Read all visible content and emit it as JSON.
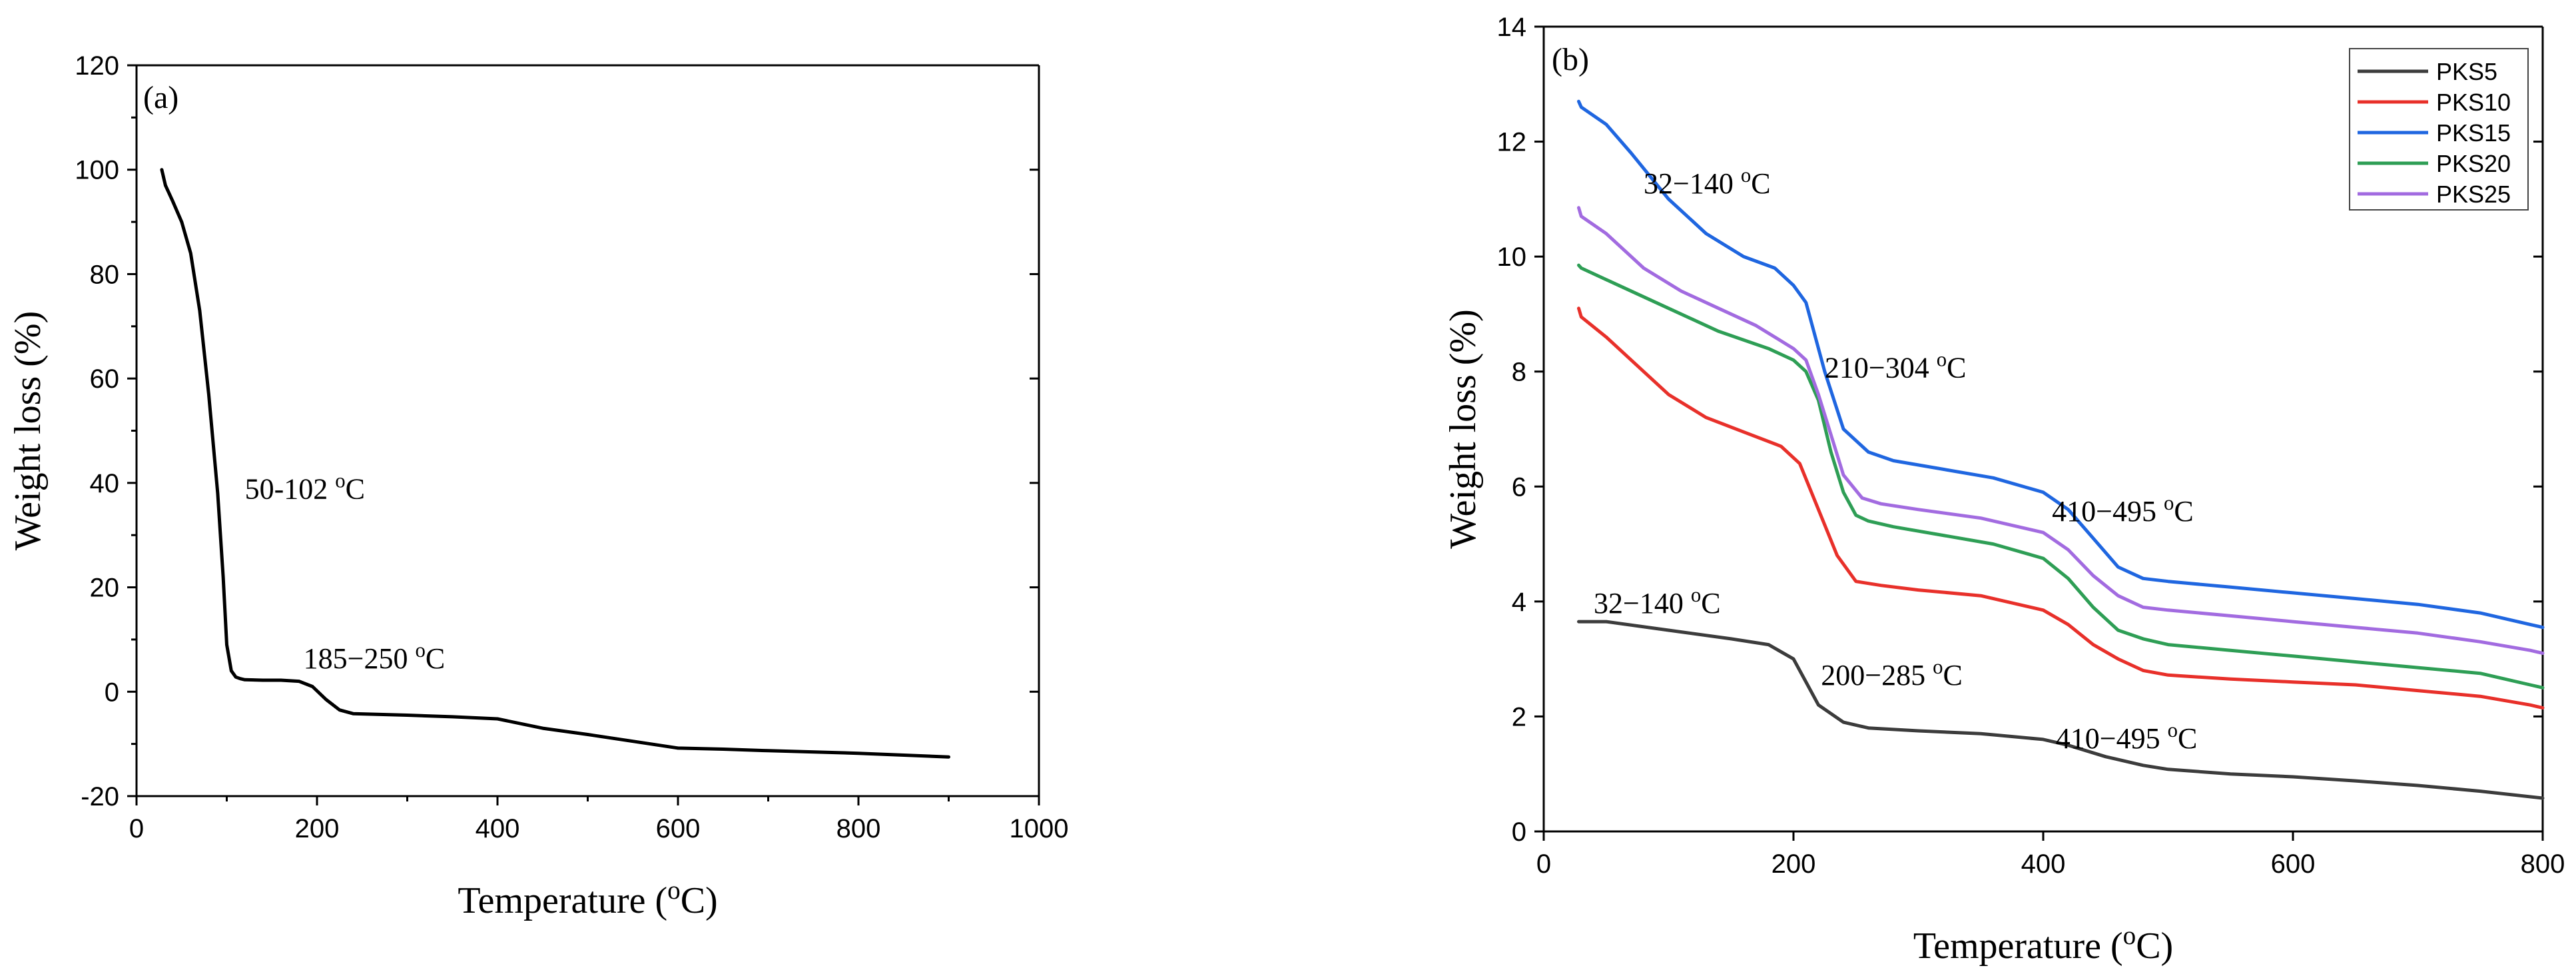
{
  "chart_data": [
    {
      "id": "a",
      "type": "line",
      "panel_label": "(a)",
      "title": "",
      "xlabel": "Temperature (°C)",
      "xlabel_main": "Temperature (",
      "xlabel_sup": "o",
      "xlabel_end": "C)",
      "ylabel": "Weight loss (%)",
      "xlim": [
        0,
        1000
      ],
      "ylim": [
        -20,
        120
      ],
      "xticks": [
        0,
        200,
        400,
        600,
        800,
        1000
      ],
      "yticks": [
        -20,
        0,
        20,
        40,
        60,
        80,
        100,
        120
      ],
      "series": [
        {
          "name": "weight loss",
          "color": "#000000",
          "x": [
            28,
            32,
            40,
            50,
            60,
            70,
            80,
            90,
            96,
            100,
            105,
            110,
            115,
            120,
            140,
            160,
            180,
            195,
            210,
            225,
            240,
            300,
            350,
            400,
            450,
            500,
            550,
            600,
            650,
            700,
            800,
            900
          ],
          "y": [
            100,
            97,
            94,
            90,
            84,
            73,
            57,
            38,
            22,
            9,
            4,
            2.8,
            2.5,
            2.3,
            2.2,
            2.2,
            2.0,
            1.0,
            -1.5,
            -3.5,
            -4.2,
            -4.5,
            -4.8,
            -5.2,
            -7.0,
            -8.2,
            -9.5,
            -10.8,
            -11.0,
            -11.3,
            -11.8,
            -12.5
          ]
        }
      ],
      "annotations": [
        {
          "id": "a1",
          "x": 120,
          "y": 37,
          "main": "50-102 ",
          "sup": "o",
          "end": "C"
        },
        {
          "id": "a2",
          "x": 185,
          "y": 4.5,
          "main": "185−250 ",
          "sup": "o",
          "end": "C"
        }
      ]
    },
    {
      "id": "b",
      "type": "line",
      "panel_label": "(b)",
      "title": "",
      "xlabel": "Temperature (°C)",
      "xlabel_main": "Temperature (",
      "xlabel_sup": "o",
      "xlabel_end": "C)",
      "ylabel": "Weight loss (%)",
      "xlim": [
        0,
        800
      ],
      "ylim": [
        0,
        14
      ],
      "xticks": [
        0,
        200,
        400,
        600,
        800
      ],
      "yticks": [
        0,
        2,
        4,
        6,
        8,
        10,
        12,
        14
      ],
      "legend_position": "top-right",
      "series": [
        {
          "name": "PKS5",
          "color": "#3c3c3c",
          "x": [
            28,
            50,
            100,
            150,
            180,
            200,
            210,
            220,
            240,
            260,
            300,
            350,
            400,
            420,
            450,
            480,
            500,
            550,
            600,
            650,
            700,
            750,
            800
          ],
          "y": [
            3.65,
            3.65,
            3.5,
            3.35,
            3.25,
            3.0,
            2.6,
            2.2,
            1.9,
            1.8,
            1.75,
            1.7,
            1.6,
            1.5,
            1.3,
            1.15,
            1.08,
            1.0,
            0.95,
            0.88,
            0.8,
            0.7,
            0.58
          ]
        },
        {
          "name": "PKS10",
          "color": "#e8302a",
          "x": [
            28,
            30,
            50,
            80,
            100,
            130,
            160,
            190,
            205,
            220,
            235,
            250,
            270,
            300,
            350,
            400,
            420,
            440,
            460,
            480,
            500,
            550,
            600,
            650,
            700,
            750,
            790,
            800
          ],
          "y": [
            9.1,
            8.95,
            8.6,
            8.0,
            7.6,
            7.2,
            6.95,
            6.7,
            6.4,
            5.6,
            4.8,
            4.35,
            4.28,
            4.2,
            4.1,
            3.85,
            3.6,
            3.25,
            3.0,
            2.8,
            2.72,
            2.65,
            2.6,
            2.55,
            2.45,
            2.35,
            2.2,
            2.15
          ]
        },
        {
          "name": "PKS15",
          "color": "#1f66e0",
          "x": [
            28,
            30,
            50,
            70,
            100,
            130,
            160,
            185,
            200,
            210,
            225,
            240,
            260,
            280,
            320,
            360,
            400,
            420,
            440,
            460,
            480,
            500,
            550,
            600,
            650,
            700,
            750,
            790,
            800
          ],
          "y": [
            12.7,
            12.6,
            12.3,
            11.8,
            11.0,
            10.4,
            10.0,
            9.8,
            9.5,
            9.2,
            8.0,
            7.0,
            6.6,
            6.45,
            6.3,
            6.15,
            5.9,
            5.6,
            5.1,
            4.6,
            4.4,
            4.35,
            4.25,
            4.15,
            4.05,
            3.95,
            3.8,
            3.6,
            3.55
          ]
        },
        {
          "name": "PKS20",
          "color": "#2e9e55",
          "x": [
            28,
            30,
            60,
            100,
            140,
            180,
            200,
            210,
            220,
            230,
            240,
            250,
            260,
            280,
            320,
            360,
            400,
            420,
            440,
            460,
            480,
            500,
            550,
            600,
            650,
            700,
            750,
            790,
            800
          ],
          "y": [
            9.85,
            9.8,
            9.5,
            9.1,
            8.7,
            8.4,
            8.2,
            8.0,
            7.5,
            6.6,
            5.9,
            5.5,
            5.4,
            5.3,
            5.15,
            5.0,
            4.75,
            4.4,
            3.9,
            3.5,
            3.35,
            3.25,
            3.15,
            3.05,
            2.95,
            2.85,
            2.75,
            2.55,
            2.5
          ]
        },
        {
          "name": "PKS25",
          "color": "#a26be0",
          "x": [
            28,
            30,
            50,
            80,
            110,
            140,
            170,
            200,
            210,
            220,
            230,
            240,
            255,
            270,
            300,
            350,
            400,
            420,
            440,
            460,
            480,
            500,
            550,
            600,
            650,
            700,
            750,
            790,
            800
          ],
          "y": [
            10.85,
            10.7,
            10.4,
            9.8,
            9.4,
            9.1,
            8.8,
            8.4,
            8.2,
            7.6,
            6.9,
            6.2,
            5.8,
            5.7,
            5.6,
            5.45,
            5.2,
            4.9,
            4.45,
            4.1,
            3.9,
            3.85,
            3.75,
            3.65,
            3.55,
            3.45,
            3.3,
            3.15,
            3.1
          ]
        }
      ],
      "annotations": [
        {
          "id": "b1",
          "x": 80,
          "y": 11.1,
          "main": "32−140 ",
          "sup": "o",
          "end": "C"
        },
        {
          "id": "b2",
          "x": 225,
          "y": 7.9,
          "main": "210−304 ",
          "sup": "o",
          "end": "C"
        },
        {
          "id": "b3",
          "x": 407,
          "y": 5.4,
          "main": "410−495 ",
          "sup": "o",
          "end": "C"
        },
        {
          "id": "b4",
          "x": 40,
          "y": 3.8,
          "main": "32−140 ",
          "sup": "o",
          "end": "C"
        },
        {
          "id": "b5",
          "x": 222,
          "y": 2.55,
          "main": "200−285 ",
          "sup": "o",
          "end": "C"
        },
        {
          "id": "b6",
          "x": 410,
          "y": 1.45,
          "main": "410−495 ",
          "sup": "o",
          "end": "C"
        }
      ]
    }
  ]
}
